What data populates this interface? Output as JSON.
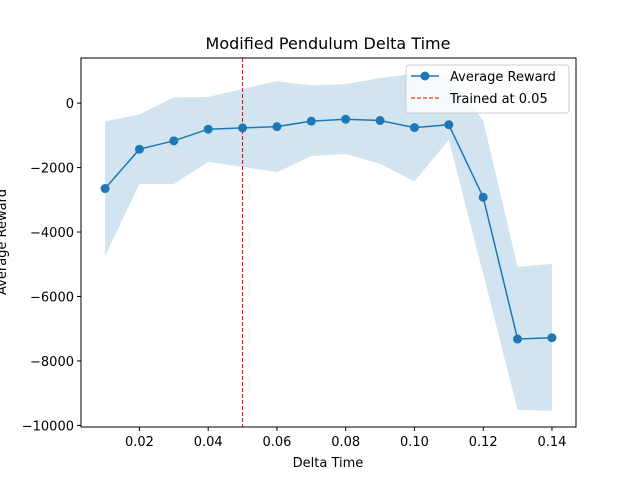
{
  "chart_data": {
    "type": "line",
    "title": "Modified Pendulum Delta Time",
    "xlabel": "Delta Time",
    "ylabel": "Average Reward",
    "xlim": [
      0.003,
      0.147
    ],
    "ylim": [
      -10050,
      1400
    ],
    "x_ticks": [
      0.02,
      0.04,
      0.06,
      0.08,
      0.1,
      0.12,
      0.14
    ],
    "x_tick_labels": [
      "0.02",
      "0.04",
      "0.06",
      "0.08",
      "0.10",
      "0.12",
      "0.14"
    ],
    "y_ticks": [
      -10000,
      -8000,
      -6000,
      -4000,
      -2000,
      0
    ],
    "y_tick_labels": [
      "−10000",
      "−8000",
      "−6000",
      "−4000",
      "−2000",
      "0"
    ],
    "grid": false,
    "legend_position": "top-right",
    "series": [
      {
        "name": "Average Reward",
        "color": "#1f77b4",
        "marker": "circle",
        "x": [
          0.01,
          0.02,
          0.03,
          0.04,
          0.05,
          0.06,
          0.07,
          0.08,
          0.09,
          0.1,
          0.11,
          0.12,
          0.13,
          0.14
        ],
        "y": [
          -2650,
          -1430,
          -1170,
          -810,
          -770,
          -730,
          -560,
          -500,
          -540,
          -760,
          -670,
          -2920,
          -7320,
          -7280
        ]
      }
    ],
    "band": {
      "color": "#1f77b4",
      "opacity": 0.2,
      "x": [
        0.01,
        0.02,
        0.03,
        0.04,
        0.05,
        0.06,
        0.07,
        0.08,
        0.09,
        0.1,
        0.11,
        0.12,
        0.13,
        0.14
      ],
      "upper": [
        -570,
        -350,
        180,
        190,
        440,
        680,
        550,
        590,
        780,
        910,
        800,
        -540,
        -5080,
        -4990
      ],
      "lower": [
        -4740,
        -2510,
        -2510,
        -1820,
        -1980,
        -2140,
        -1640,
        -1580,
        -1880,
        -2430,
        -1140,
        -5300,
        -9520,
        -9550
      ]
    },
    "vline": {
      "x": 0.05,
      "color": "#ff0000",
      "style": "dashed",
      "label": "Trained at 0.05"
    }
  }
}
